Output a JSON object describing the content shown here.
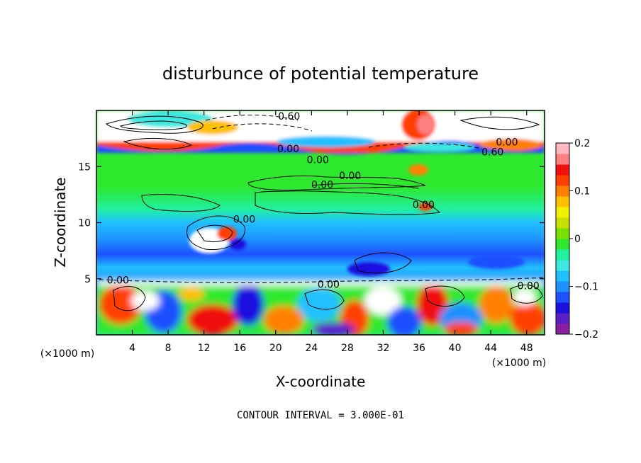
{
  "chart_data": {
    "type": "heatmap",
    "title": "disturbunce of potential temperature",
    "xlabel": "X-coordinate",
    "ylabel": "Z-coordinate",
    "x_unit_label_left": "(×1000 m)",
    "x_unit_label_right": "(×1000 m)",
    "xlim": [
      0,
      50
    ],
    "ylim": [
      0,
      20
    ],
    "x_ticks": [
      4,
      8,
      12,
      16,
      20,
      24,
      28,
      32,
      36,
      40,
      44,
      48
    ],
    "y_ticks": [
      5,
      10,
      15
    ],
    "colorbar": {
      "range": [
        -0.2,
        0.2
      ],
      "ticks": [
        "0.2",
        "0.1",
        "0",
        "−0.1",
        "−0.2"
      ],
      "colors": [
        "#8a1fa0",
        "#5a1fc8",
        "#1a10e0",
        "#1e50ff",
        "#1e90ff",
        "#20c0ff",
        "#3ce8e0",
        "#20f0a0",
        "#2ee82e",
        "#78e000",
        "#c8e000",
        "#f0f000",
        "#ffc000",
        "#ff8000",
        "#ff4000",
        "#f01010",
        "#ff8080",
        "#ffb8c0"
      ]
    },
    "contour_labels": [
      {
        "text": "0.60",
        "x": 21.5,
        "z": 19.5
      },
      {
        "text": "0.00",
        "x": 45.8,
        "z": 17.2
      },
      {
        "text": "0.60",
        "x": 44.2,
        "z": 16.3
      },
      {
        "text": "0.00",
        "x": 21.4,
        "z": 16.6
      },
      {
        "text": "0.00",
        "x": 24.7,
        "z": 15.6
      },
      {
        "text": "0.00",
        "x": 28.3,
        "z": 14.2
      },
      {
        "text": "0.00",
        "x": 25.2,
        "z": 13.4
      },
      {
        "text": "0.00",
        "x": 36.5,
        "z": 11.6
      },
      {
        "text": "0.00",
        "x": 16.5,
        "z": 10.3
      },
      {
        "text": "0.00",
        "x": 2.4,
        "z": 4.9
      },
      {
        "text": "0.00",
        "x": 25.9,
        "z": 4.5
      },
      {
        "text": "0.00",
        "x": 48.2,
        "z": 4.4
      }
    ],
    "contour_interval": "CONTOUR INTERVAL = 3.000E-01"
  }
}
